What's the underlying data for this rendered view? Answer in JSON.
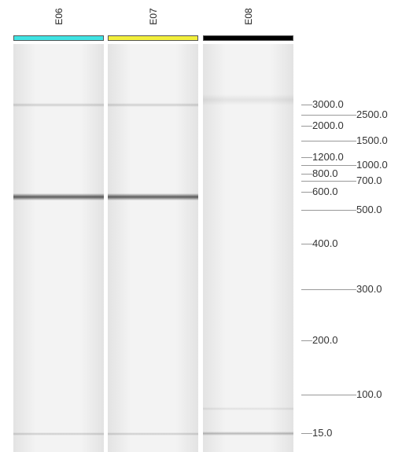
{
  "lanes": [
    {
      "name": "E06",
      "color": "#3fe3e3"
    },
    {
      "name": "E07",
      "color": "#f2ef3c"
    },
    {
      "name": "E08",
      "color": "#000000"
    }
  ],
  "ladder": [
    "3000.0",
    "2500.0",
    "2000.0",
    "1500.0",
    "1200.0",
    "1000.0",
    "800.0",
    "700.0",
    "600.0",
    "500.0",
    "400.0",
    "300.0",
    "200.0",
    "100.0",
    "15.0"
  ]
}
